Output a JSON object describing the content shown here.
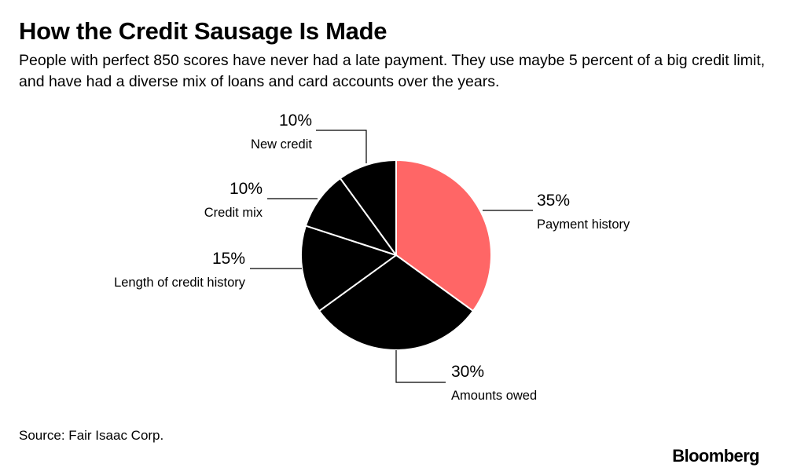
{
  "header": {
    "title": "How the Credit Sausage Is Made",
    "subtitle": "People with perfect 850 scores have never had a late payment. They use maybe 5 percent of a big credit limit, and have had a diverse mix of loans and card accounts over the years."
  },
  "chart_data": {
    "type": "pie",
    "title": "How the Credit Sausage Is Made",
    "start": "12 o'clock, clockwise",
    "slices": [
      {
        "label": "Payment history",
        "value": 35,
        "value_label": "35%",
        "color": "#ff6666"
      },
      {
        "label": "Amounts owed",
        "value": 30,
        "value_label": "30%",
        "color": "#000000"
      },
      {
        "label": "Length of credit history",
        "value": 15,
        "value_label": "15%",
        "color": "#000000"
      },
      {
        "label": "Credit mix",
        "value": 10,
        "value_label": "10%",
        "color": "#000000"
      },
      {
        "label": "New credit",
        "value": 10,
        "value_label": "10%",
        "color": "#000000"
      }
    ],
    "slice_border_color": "#ffffff",
    "leader_line_color": "#000000"
  },
  "footer": {
    "source": "Source: Fair Isaac Corp.",
    "brand": "Bloomberg"
  }
}
